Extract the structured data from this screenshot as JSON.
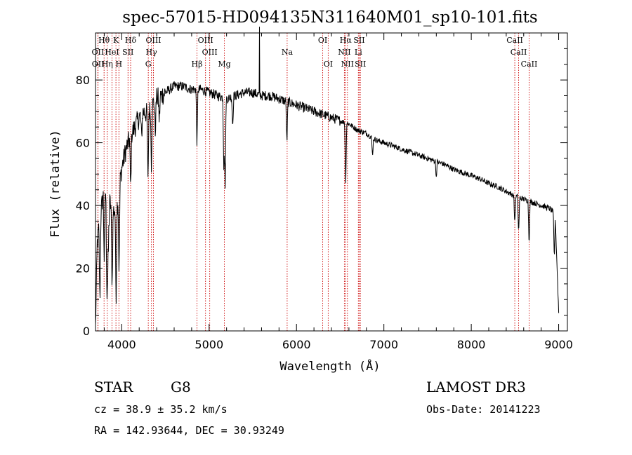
{
  "chart_data": {
    "type": "line",
    "title": "spec-57015-HD094135N311640M01_sp10-101.fits",
    "xlabel": "Wavelength (Å)",
    "ylabel": "Flux (relative)",
    "xlim": [
      3700,
      9100
    ],
    "ylim": [
      0,
      95
    ],
    "xticks": [
      4000,
      5000,
      6000,
      7000,
      8000,
      9000
    ],
    "yticks": [
      0,
      20,
      40,
      60,
      80
    ],
    "grid": false,
    "legend": "none",
    "series": [
      {
        "color": "#000000",
        "continuum": [
          [
            3700,
            1
          ],
          [
            3720,
            28
          ],
          [
            3760,
            38
          ],
          [
            3800,
            45
          ],
          [
            3850,
            42
          ],
          [
            3900,
            38
          ],
          [
            3950,
            40
          ],
          [
            4000,
            52
          ],
          [
            4050,
            58
          ],
          [
            4100,
            62
          ],
          [
            4150,
            65
          ],
          [
            4200,
            68
          ],
          [
            4250,
            70
          ],
          [
            4300,
            69
          ],
          [
            4350,
            72
          ],
          [
            4400,
            74
          ],
          [
            4500,
            76
          ],
          [
            4600,
            78
          ],
          [
            4700,
            78
          ],
          [
            4800,
            77
          ],
          [
            4900,
            77
          ],
          [
            5000,
            76
          ],
          [
            5100,
            75
          ],
          [
            5200,
            74
          ],
          [
            5300,
            75
          ],
          [
            5400,
            76
          ],
          [
            5500,
            76
          ],
          [
            5600,
            75
          ],
          [
            5700,
            75
          ],
          [
            5800,
            74
          ],
          [
            5900,
            73
          ],
          [
            6000,
            72
          ],
          [
            6100,
            71
          ],
          [
            6200,
            70
          ],
          [
            6300,
            69
          ],
          [
            6400,
            68
          ],
          [
            6500,
            67
          ],
          [
            6600,
            66
          ],
          [
            6700,
            64
          ],
          [
            6800,
            63
          ],
          [
            6900,
            61
          ],
          [
            7000,
            60
          ],
          [
            7100,
            59
          ],
          [
            7200,
            58
          ],
          [
            7300,
            57
          ],
          [
            7400,
            56
          ],
          [
            7500,
            55
          ],
          [
            7600,
            54
          ],
          [
            7700,
            53
          ],
          [
            7800,
            51.5
          ],
          [
            7900,
            50.5
          ],
          [
            8000,
            49.5
          ],
          [
            8100,
            48.5
          ],
          [
            8200,
            47
          ],
          [
            8300,
            46
          ],
          [
            8400,
            44.5
          ],
          [
            8500,
            43
          ],
          [
            8600,
            42
          ],
          [
            8700,
            41
          ],
          [
            8800,
            40
          ],
          [
            8900,
            39
          ],
          [
            8960,
            37
          ],
          [
            9000,
            6
          ]
        ],
        "absorptions": [
          [
            3750,
            28
          ],
          [
            3800,
            22
          ],
          [
            3830,
            30
          ],
          [
            3840,
            20
          ],
          [
            3850,
            12
          ],
          [
            3890,
            26
          ],
          [
            3935,
            30
          ],
          [
            3970,
            28
          ],
          [
            4102,
            18
          ],
          [
            4227,
            8
          ],
          [
            4300,
            22
          ],
          [
            4340,
            18
          ],
          [
            4384,
            10
          ],
          [
            4430,
            8
          ],
          [
            4861,
            18
          ],
          [
            5168,
            22
          ],
          [
            5183,
            30
          ],
          [
            5270,
            10
          ],
          [
            5890,
            14
          ],
          [
            6563,
            20
          ],
          [
            6870,
            6
          ],
          [
            7600,
            5
          ],
          [
            8498,
            9
          ],
          [
            8542,
            12
          ],
          [
            8662,
            14
          ],
          [
            8950,
            15
          ]
        ],
        "spikes": [
          [
            5577,
            22
          ]
        ]
      }
    ],
    "spectral_lines": [
      {
        "name": "Hθ",
        "wavelength": 3798,
        "row": 0
      },
      {
        "name": "K",
        "wavelength": 3934,
        "row": 0
      },
      {
        "name": "Hδ",
        "wavelength": 4102,
        "row": 0
      },
      {
        "name": "OIII",
        "wavelength": 4363,
        "row": 0
      },
      {
        "name": "OIII",
        "wavelength": 4959,
        "row": 0
      },
      {
        "name": "OI",
        "wavelength": 6300,
        "row": 0
      },
      {
        "name": "Hα",
        "wavelength": 6563,
        "row": 0
      },
      {
        "name": "SII",
        "wavelength": 6717,
        "row": 0
      },
      {
        "name": "CaII",
        "wavelength": 8498,
        "row": 0
      },
      {
        "name": "OII",
        "wavelength": 3727,
        "row": 1
      },
      {
        "name": "HeI",
        "wavelength": 3889,
        "row": 1
      },
      {
        "name": "SII",
        "wavelength": 4072,
        "row": 1
      },
      {
        "name": "Hγ",
        "wavelength": 4340,
        "row": 1
      },
      {
        "name": "OIII",
        "wavelength": 5007,
        "row": 1
      },
      {
        "name": "Na",
        "wavelength": 5893,
        "row": 1
      },
      {
        "name": "NII",
        "wavelength": 6548,
        "row": 1
      },
      {
        "name": "Li",
        "wavelength": 6708,
        "row": 1
      },
      {
        "name": "CaII",
        "wavelength": 8542,
        "row": 1
      },
      {
        "name": "OII",
        "wavelength": 3729,
        "row": 2
      },
      {
        "name": "Hη",
        "wavelength": 3835,
        "row": 2
      },
      {
        "name": "H",
        "wavelength": 3968,
        "row": 2
      },
      {
        "name": "G",
        "wavelength": 4304,
        "row": 2
      },
      {
        "name": "Hβ",
        "wavelength": 4861,
        "row": 2
      },
      {
        "name": "Mg",
        "wavelength": 5175,
        "row": 2
      },
      {
        "name": "OI",
        "wavelength": 6363,
        "row": 2
      },
      {
        "name": "NII",
        "wavelength": 6583,
        "row": 2
      },
      {
        "name": "SII",
        "wavelength": 6731,
        "row": 2
      },
      {
        "name": "CaII",
        "wavelength": 8662,
        "row": 2
      }
    ]
  },
  "info": {
    "class_label": "STAR",
    "subclass": "G8",
    "survey": "LAMOST DR3",
    "cz": "cz = 38.9 ± 35.2 km/s",
    "obs_date": "Obs-Date: 20141223",
    "coords": "RA = 142.93644, DEC =  30.93249"
  },
  "colors": {
    "spectrum": "#000000",
    "line_markers": "#cc0000",
    "axes": "#000000"
  }
}
